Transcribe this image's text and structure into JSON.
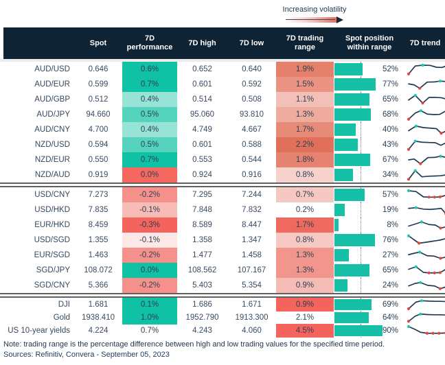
{
  "legend": {
    "label": "Increasing volatility"
  },
  "colors": {
    "header_bg": "#0e2334",
    "bar_teal": "#16c0a6",
    "spark_line": "#22384f",
    "dot_teal": "#1ac7b0",
    "dot_red": "#e2463c",
    "teal_strong": "#0fc2a5",
    "red_strong": "#f4635c"
  },
  "chart_data": {
    "type": "table",
    "columns": [
      "Spot",
      "7D performance",
      "7D high",
      "7D low",
      "7D trading range",
      "Spot position within range",
      "7D trend"
    ],
    "sections": [
      {
        "rows": [
          {
            "pair": "AUD/USD",
            "spot": "0.646",
            "perf": "0.6%",
            "perf_bg": "#0fc2a5",
            "high": "0.652",
            "low": "0.640",
            "range": "1.9%",
            "range_bg": "#e5806c",
            "pos": 52,
            "trend": {
              "pts": [
                [
                  0,
                  95
                ],
                [
                  18,
                  18
                ],
                [
                  38,
                  10
                ],
                [
                  58,
                  12
                ],
                [
                  75,
                  30
                ],
                [
                  90,
                  32
                ],
                [
                  100,
                  20
                ]
              ],
              "max": 2,
              "mins": [
                0
              ]
            }
          },
          {
            "pair": "AUD/EUR",
            "spot": "0.599",
            "perf": "0.7%",
            "perf_bg": "#0fc2a5",
            "high": "0.601",
            "low": "0.592",
            "range": "1.5%",
            "range_bg": "#ea9383",
            "pos": 77,
            "trend": {
              "pts": [
                [
                  0,
                  45
                ],
                [
                  15,
                  55
                ],
                [
                  30,
                  88
                ],
                [
                  50,
                  28
                ],
                [
                  70,
                  26
                ],
                [
                  85,
                  18
                ],
                [
                  100,
                  22
                ]
              ],
              "max": 5,
              "mins": [
                2
              ]
            }
          },
          {
            "pair": "AUD/GBP",
            "spot": "0.512",
            "perf": "0.4%",
            "perf_bg": "#97e3d6",
            "high": "0.514",
            "low": "0.508",
            "range": "1.1%",
            "range_bg": "#f3c0b8",
            "pos": 65,
            "trend": {
              "pts": [
                [
                  0,
                  55
                ],
                [
                  18,
                  10
                ],
                [
                  38,
                  85
                ],
                [
                  55,
                  30
                ],
                [
                  72,
                  30
                ],
                [
                  88,
                  33
                ],
                [
                  100,
                  44
                ]
              ],
              "max": 1,
              "mins": [
                2
              ]
            }
          },
          {
            "pair": "AUD/JPY",
            "spot": "94.660",
            "perf": "0.5%",
            "perf_bg": "#55d3bd",
            "high": "95.060",
            "low": "93.810",
            "range": "1.3%",
            "range_bg": "#eeab9e",
            "pos": 68,
            "trend": {
              "pts": [
                [
                  0,
                  95
                ],
                [
                  18,
                  35
                ],
                [
                  33,
                  12
                ],
                [
                  50,
                  45
                ],
                [
                  68,
                  50
                ],
                [
                  84,
                  48
                ],
                [
                  100,
                  15
                ]
              ],
              "max": 2,
              "mins": [
                0
              ]
            }
          },
          {
            "pair": "AUD/CNY",
            "spot": "4.700",
            "perf": "0.4%",
            "perf_bg": "#97e3d6",
            "high": "4.749",
            "low": "4.667",
            "range": "1.7%",
            "range_bg": "#e78b79",
            "pos": 40,
            "trend": {
              "pts": [
                [
                  0,
                  60
                ],
                [
                  20,
                  15
                ],
                [
                  40,
                  30
                ],
                [
                  58,
                  35
                ],
                [
                  75,
                  40
                ],
                [
                  88,
                  85
                ],
                [
                  100,
                  65
                ]
              ],
              "max": 1,
              "mins": [
                5
              ]
            }
          },
          {
            "pair": "NZD/USD",
            "spot": "0.594",
            "perf": "0.5%",
            "perf_bg": "#55d3bd",
            "high": "0.601",
            "low": "0.588",
            "range": "2.2%",
            "range_bg": "#e0705a",
            "pos": 43,
            "trend": {
              "pts": [
                [
                  0,
                  95
                ],
                [
                  18,
                  15
                ],
                [
                  36,
                  25
                ],
                [
                  55,
                  28
                ],
                [
                  72,
                  30
                ],
                [
                  87,
                  55
                ],
                [
                  100,
                  32
                ]
              ],
              "max": 1,
              "mins": [
                0
              ]
            }
          },
          {
            "pair": "NZD/EUR",
            "spot": "0.550",
            "perf": "0.7%",
            "perf_bg": "#0fc2a5",
            "high": "0.553",
            "low": "0.544",
            "range": "1.8%",
            "range_bg": "#e68370",
            "pos": 67,
            "trend": {
              "pts": [
                [
                  0,
                  50
                ],
                [
                  15,
                  42
                ],
                [
                  32,
                  88
                ],
                [
                  52,
                  28
                ],
                [
                  70,
                  26
                ],
                [
                  86,
                  15
                ],
                [
                  100,
                  25
                ]
              ],
              "max": 5,
              "mins": [
                2
              ]
            }
          },
          {
            "pair": "NZD/AUD",
            "spot": "0.919",
            "perf": "0.0%",
            "perf_bg": "#f5685f",
            "high": "0.924",
            "low": "0.916",
            "range": "0.8%",
            "range_bg": "#f7d2cc",
            "pos": 34,
            "trend": {
              "pts": [
                [
                  0,
                  92
                ],
                [
                  18,
                  8
                ],
                [
                  36,
                  68
                ],
                [
                  55,
                  62
                ],
                [
                  72,
                  60
                ],
                [
                  86,
                  58
                ],
                [
                  100,
                  50
                ]
              ],
              "max": 1,
              "mins": [
                0
              ]
            }
          }
        ]
      },
      {
        "rows": [
          {
            "pair": "USD/CNY",
            "spot": "7.273",
            "perf": "-0.2%",
            "perf_bg": "#f5918a",
            "high": "7.295",
            "low": "7.244",
            "range": "0.7%",
            "range_bg": "#f6c8c2",
            "pos": 57,
            "trend": {
              "pts": [
                [
                  0,
                  10
                ],
                [
                  20,
                  18
                ],
                [
                  40,
                  70
                ],
                [
                  55,
                  72
                ],
                [
                  70,
                  72
                ],
                [
                  85,
                  70
                ],
                [
                  100,
                  55
                ]
              ],
              "max": 0,
              "mins": [
                3,
                4,
                5
              ]
            }
          },
          {
            "pair": "USD/HKD",
            "spot": "7.835",
            "perf": "-0.1%",
            "perf_bg": "#f8bcb7",
            "high": "7.848",
            "low": "7.832",
            "range": "0.2%",
            "range_bg": "none",
            "pos": 19,
            "trend": {
              "pts": [
                [
                  0,
                  35
                ],
                [
                  20,
                  28
                ],
                [
                  40,
                  42
                ],
                [
                  58,
                  45
                ],
                [
                  75,
                  40
                ],
                [
                  88,
                  35
                ],
                [
                  100,
                  85
                ]
              ],
              "max": 1,
              "mins": [
                6
              ]
            }
          },
          {
            "pair": "EUR/HKD",
            "spot": "8.459",
            "perf": "-0.3%",
            "perf_bg": "#f4635c",
            "high": "8.589",
            "low": "8.447",
            "range": "1.7%",
            "range_bg": "#f0695e",
            "pos": 8,
            "trend": {
              "pts": [
                [
                  0,
                  60
                ],
                [
                  18,
                  40
                ],
                [
                  35,
                  20
                ],
                [
                  55,
                  45
                ],
                [
                  72,
                  50
                ],
                [
                  86,
                  80
                ],
                [
                  100,
                  68
                ]
              ],
              "max": 2,
              "mins": [
                5
              ]
            }
          },
          {
            "pair": "USD/SGD",
            "spot": "1.355",
            "perf": "-0.1%",
            "perf_bg": "#fce8e6",
            "high": "1.358",
            "low": "1.347",
            "range": "0.8%",
            "range_bg": "#f6c9c3",
            "pos": 76,
            "trend": {
              "pts": [
                [
                  0,
                  8
                ],
                [
                  14,
                  45
                ],
                [
                  28,
                  80
                ],
                [
                  48,
                  70
                ],
                [
                  66,
                  60
                ],
                [
                  84,
                  50
                ],
                [
                  100,
                  35
                ]
              ],
              "max": 0,
              "mins": [
                2
              ]
            }
          },
          {
            "pair": "EUR/SGD",
            "spot": "1.463",
            "perf": "-0.2%",
            "perf_bg": "#f5918a",
            "high": "1.477",
            "low": "1.458",
            "range": "1.3%",
            "range_bg": "#f2968d",
            "pos": 27,
            "trend": {
              "pts": [
                [
                  0,
                  45
                ],
                [
                  16,
                  30
                ],
                [
                  30,
                  20
                ],
                [
                  50,
                  55
                ],
                [
                  68,
                  58
                ],
                [
                  86,
                  80
                ],
                [
                  100,
                  68
                ]
              ],
              "max": 2,
              "mins": [
                5
              ]
            }
          },
          {
            "pair": "SGD/JPY",
            "spot": "108.072",
            "perf": "0.0%",
            "perf_bg": "#0fc2a5",
            "high": "108.562",
            "low": "107.167",
            "range": "1.3%",
            "range_bg": "#f2968d",
            "pos": 65,
            "trend": {
              "pts": [
                [
                  0,
                  40
                ],
                [
                  20,
                  15
                ],
                [
                  40,
                  70
                ],
                [
                  55,
                  75
                ],
                [
                  70,
                  75
                ],
                [
                  85,
                  72
                ],
                [
                  100,
                  40
                ]
              ],
              "max": 1,
              "mins": [
                3,
                4,
                5
              ]
            }
          },
          {
            "pair": "SGD/CNY",
            "spot": "5.366",
            "perf": "-0.2%",
            "perf_bg": "#f5918a",
            "high": "5.403",
            "low": "5.354",
            "range": "0.9%",
            "range_bg": "#f5bcb5",
            "pos": 24,
            "trend": {
              "pts": [
                [
                  0,
                  55
                ],
                [
                  18,
                  30
                ],
                [
                  32,
                  22
                ],
                [
                  52,
                  50
                ],
                [
                  70,
                  55
                ],
                [
                  85,
                  82
                ],
                [
                  100,
                  65
                ]
              ],
              "max": 2,
              "mins": [
                5
              ]
            }
          }
        ]
      },
      {
        "rows": [
          {
            "pair": "DJI",
            "spot": "1.681",
            "perf": "0.1%",
            "perf_bg": "#0fc2a5",
            "high": "1.686",
            "low": "1.671",
            "range": "0.9%",
            "range_bg": "#f4635c",
            "pos": 69,
            "trend": {
              "pts": [
                [
                  0,
                  90
                ],
                [
                  20,
                  25
                ],
                [
                  35,
                  12
                ],
                [
                  55,
                  16
                ],
                [
                  72,
                  18
                ],
                [
                  86,
                  18
                ],
                [
                  100,
                  20
                ]
              ],
              "max": 2,
              "mins": [
                0
              ]
            }
          },
          {
            "pair": "Gold",
            "spot": "1938.410",
            "perf": "1.0%",
            "perf_bg": "#0fc2a5",
            "high": "1952.790",
            "low": "1913.300",
            "range": "2.1%",
            "range_bg": "none",
            "pos": 64,
            "trend": {
              "pts": [
                [
                  0,
                  85
                ],
                [
                  18,
                  35
                ],
                [
                  32,
                  15
                ],
                [
                  52,
                  20
                ],
                [
                  70,
                  22
                ],
                [
                  86,
                  22
                ],
                [
                  100,
                  24
                ]
              ],
              "max": 2,
              "mins": [
                0
              ]
            }
          },
          {
            "pair": "US 10-year yields",
            "spot": "4.224",
            "perf": "0.7%",
            "perf_bg": "none",
            "high": "4.243",
            "low": "4.060",
            "range": "4.5%",
            "range_bg": "#f4635c",
            "pos": 90,
            "trend": {
              "pts": [
                [
                  0,
                  10
                ],
                [
                  16,
                  35
                ],
                [
                  32,
                  65
                ],
                [
                  50,
                  75
                ],
                [
                  66,
                  75
                ],
                [
                  82,
                  75
                ],
                [
                  100,
                  72
                ]
              ],
              "max": 0,
              "mins": [
                3,
                4,
                5,
                6
              ]
            }
          }
        ]
      }
    ]
  },
  "footer": {
    "note": "Note: trading range is the percentage difference between high and low trading values for the specified time period.",
    "sources": "Sources: Refinitiv, Convera - September 05, 2023"
  }
}
